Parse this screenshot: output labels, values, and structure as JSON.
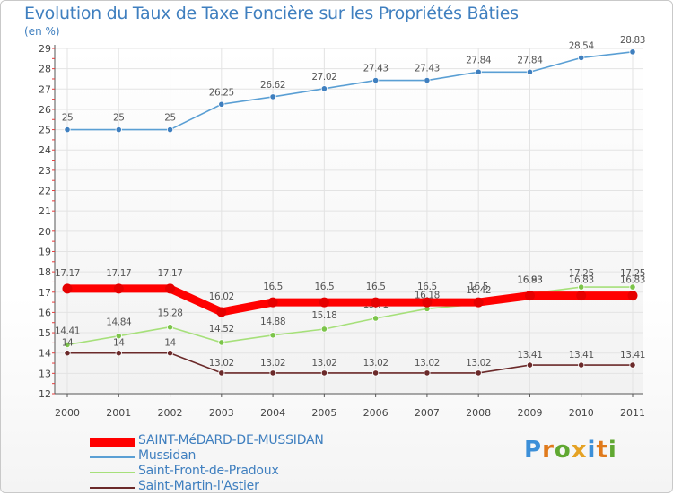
{
  "title": "Evolution du Taux de Taxe Foncière sur les Propriétés Bâties",
  "unit_label": "(en %)",
  "logo_text": "Proxiti",
  "logo_colors": [
    "#3c8fd8",
    "#e07a1c",
    "#60a832",
    "#e5a224",
    "#3c8fd8",
    "#e07a1c",
    "#60a832"
  ],
  "chart_data": {
    "type": "line",
    "title": "Evolution du Taux de Taxe Foncière sur les Propriétés Bâties",
    "ylabel": "(en %)",
    "xlabel": "",
    "x": [
      "2000",
      "2001",
      "2002",
      "2003",
      "2004",
      "2005",
      "2006",
      "2007",
      "2008",
      "2009",
      "2010",
      "2011"
    ],
    "ylim": [
      12,
      29
    ],
    "yticks": [
      "12",
      "13",
      "14",
      "15",
      "16",
      "17",
      "18",
      "19",
      "20",
      "21",
      "22",
      "23",
      "24",
      "25",
      "26",
      "27",
      "28",
      "29"
    ],
    "grid": true,
    "legend_position": "bottom-left",
    "series": [
      {
        "name": "Mussidan",
        "color": "#5a9fd4",
        "marker": "#3f7fbf",
        "values": [
          25,
          25,
          25,
          26.25,
          26.62,
          27.02,
          27.43,
          27.43,
          27.84,
          27.84,
          28.54,
          28.83
        ],
        "labels": [
          "25",
          "25",
          "25",
          "26.25",
          "26.62",
          "27.02",
          "27.43",
          "27.43",
          "27.84",
          "27.84",
          "28.54",
          "28.83"
        ]
      },
      {
        "name": "Saint-Front-de-Pradoux",
        "color": "#a6e07a",
        "marker": "#7cc44a",
        "values": [
          14.41,
          14.84,
          15.28,
          14.52,
          14.88,
          15.18,
          15.71,
          16.18,
          16.42,
          16.93,
          17.25,
          17.25
        ],
        "labels": [
          "14.41",
          "14.84",
          "15.28",
          "14.52",
          "14.88",
          "15.18",
          "15.71",
          "16.18",
          "16.42",
          "16.93",
          "17.25",
          "17.25"
        ]
      },
      {
        "name": "Saint-Martin-l'Astier",
        "color": "#6b2a2a",
        "marker": "#6b2a2a",
        "values": [
          14,
          14,
          14,
          13.02,
          13.02,
          13.02,
          13.02,
          13.02,
          13.02,
          13.41,
          13.41,
          13.41
        ],
        "labels": [
          "14",
          "14",
          "14",
          "13.02",
          "13.02",
          "13.02",
          "13.02",
          "13.02",
          "13.02",
          "13.41",
          "13.41",
          "13.41"
        ]
      },
      {
        "name": "SAINT-MéDARD-DE-MUSSIDAN",
        "color": "#ff0000",
        "marker": "#e60000",
        "values": [
          17.17,
          17.17,
          17.17,
          16.02,
          16.5,
          16.5,
          16.5,
          16.5,
          16.5,
          16.83,
          16.83,
          16.83
        ],
        "labels": [
          "17.17",
          "17.17",
          "17.17",
          "16.02",
          "16.5",
          "16.5",
          "16.5",
          "16.5",
          "16.5",
          "16.83",
          "16.83",
          "16.83"
        ]
      }
    ],
    "legend": [
      {
        "name": "SAINT-MéDARD-DE-MUSSIDAN",
        "color": "#ff0000",
        "thick": true
      },
      {
        "name": "Mussidan",
        "color": "#5a9fd4",
        "thick": false
      },
      {
        "name": "Saint-Front-de-Pradoux",
        "color": "#a6e07a",
        "thick": false
      },
      {
        "name": "Saint-Martin-l'Astier",
        "color": "#6b2a2a",
        "thick": false
      }
    ]
  }
}
